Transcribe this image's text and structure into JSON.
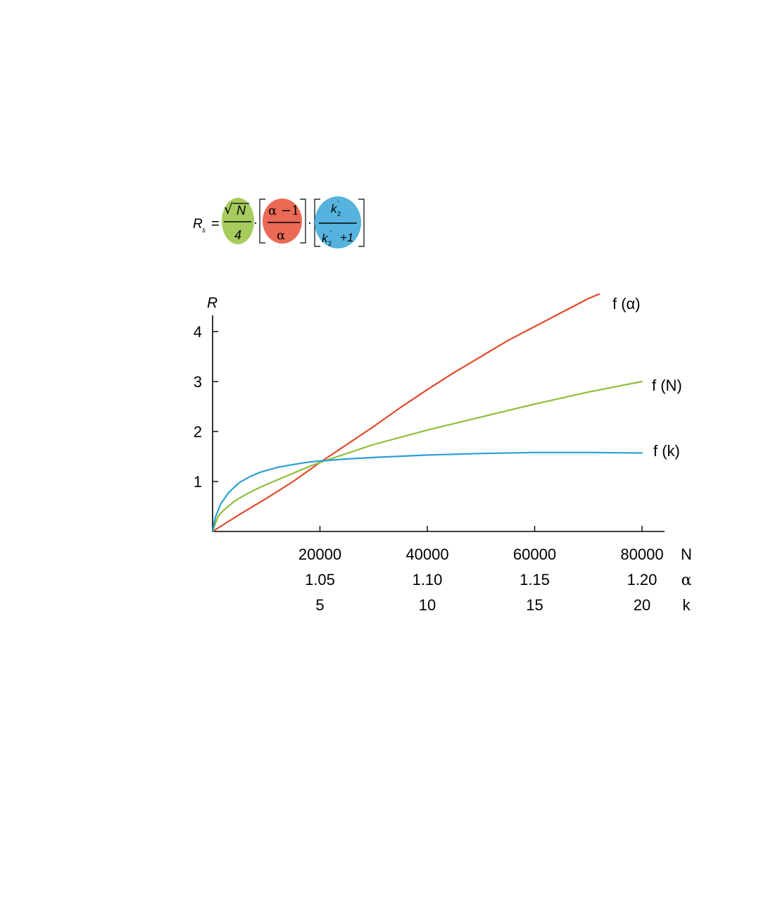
{
  "formula": {
    "lhs": "R",
    "lhs_subscript": "s",
    "equals": "=",
    "dot": "·",
    "term_n": {
      "radical": "√",
      "numerator": "N",
      "denominator": "4",
      "color": "#a6cc5e"
    },
    "term_alpha": {
      "numerator": "α −1",
      "denominator": "α",
      "color": "#ea6a55"
    },
    "term_k": {
      "numerator_base": "k",
      "numerator_sub": "2",
      "numerator_prime": "'",
      "denominator_base": "k",
      "denominator_sub": "2",
      "denominator_prime": "'",
      "denominator_rest": "+1",
      "color": "#55b3de"
    }
  },
  "chart_data": {
    "type": "line",
    "ylabel": "R",
    "ylim": [
      0,
      4.3
    ],
    "yticks": [
      {
        "value": 1,
        "label": "1"
      },
      {
        "value": 2,
        "label": "2"
      },
      {
        "value": 3,
        "label": "3"
      },
      {
        "value": 4,
        "label": "4"
      }
    ],
    "xlim": [
      0,
      85000
    ],
    "x_axes": [
      {
        "name": "N",
        "ticks": [
          {
            "value": 20000,
            "label": "20000"
          },
          {
            "value": 40000,
            "label": "40000"
          },
          {
            "value": 60000,
            "label": "60000"
          },
          {
            "value": 80000,
            "label": "80000"
          }
        ]
      },
      {
        "name": "α",
        "ticks": [
          {
            "value": 20000,
            "label": "1.05"
          },
          {
            "value": 40000,
            "label": "1.10"
          },
          {
            "value": 60000,
            "label": "1.15"
          },
          {
            "value": 80000,
            "label": "1.20"
          }
        ]
      },
      {
        "name": "k",
        "ticks": [
          {
            "value": 20000,
            "label": "5"
          },
          {
            "value": 40000,
            "label": "10"
          },
          {
            "value": 60000,
            "label": "15"
          },
          {
            "value": 80000,
            "label": "20"
          }
        ]
      }
    ],
    "series": [
      {
        "name": "f (α)",
        "color": "#e24a2b",
        "x": [
          0,
          5000,
          10000,
          15000,
          20000,
          25000,
          30000,
          35000,
          40000,
          45000,
          50000,
          55000,
          60000,
          65000,
          70000,
          72000
        ],
        "y": [
          0,
          0.34,
          0.66,
          1.0,
          1.38,
          1.74,
          2.1,
          2.48,
          2.84,
          3.18,
          3.5,
          3.82,
          4.1,
          4.38,
          4.66,
          4.75
        ]
      },
      {
        "name": "f (N)",
        "color": "#8fbf3c",
        "x": [
          0,
          1000,
          2000,
          4000,
          6000,
          8000,
          10000,
          14000,
          18000,
          20000,
          25000,
          30000,
          40000,
          50000,
          60000,
          70000,
          80000
        ],
        "y": [
          0,
          0.3,
          0.42,
          0.6,
          0.73,
          0.84,
          0.94,
          1.12,
          1.3,
          1.38,
          1.56,
          1.74,
          2.03,
          2.29,
          2.55,
          2.79,
          3.0
        ]
      },
      {
        "name": "f (k)",
        "color": "#2a9fd6",
        "x": [
          0,
          500,
          1500,
          3000,
          5000,
          7000,
          9000,
          12000,
          15000,
          18000,
          20000,
          25000,
          30000,
          40000,
          50000,
          60000,
          70000,
          80000
        ],
        "y": [
          0,
          0.28,
          0.55,
          0.78,
          0.98,
          1.1,
          1.19,
          1.28,
          1.34,
          1.39,
          1.41,
          1.45,
          1.48,
          1.53,
          1.56,
          1.58,
          1.58,
          1.57
        ]
      }
    ]
  }
}
